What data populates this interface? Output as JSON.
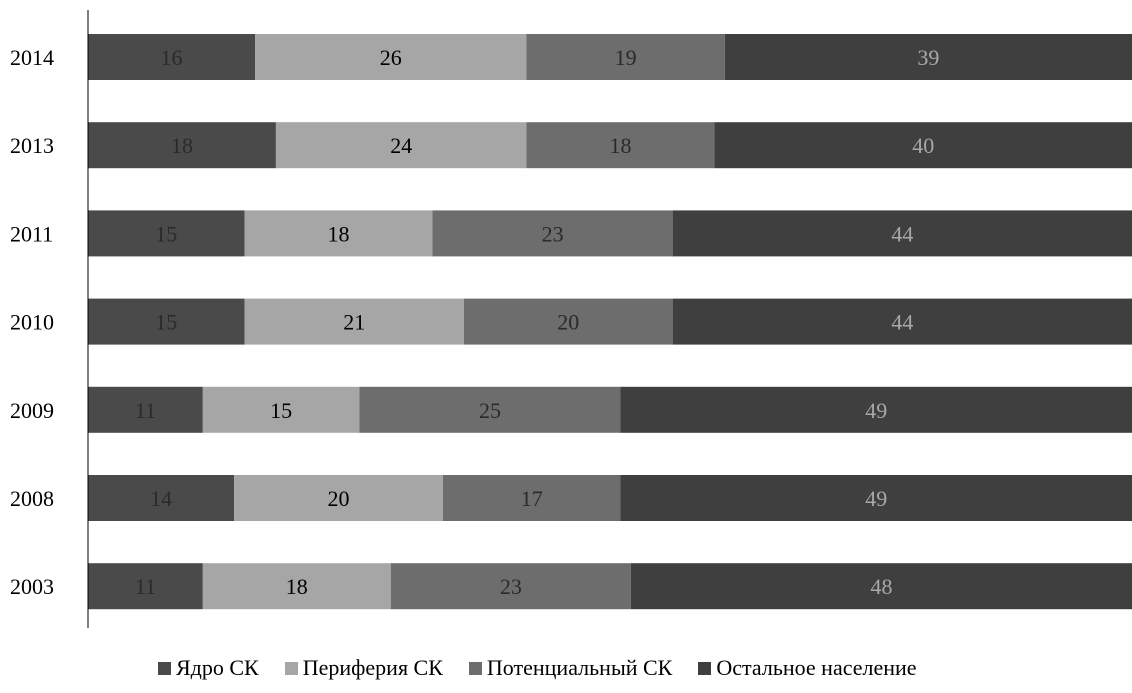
{
  "chart_data": {
    "type": "bar",
    "orientation": "horizontal",
    "stacked": true,
    "categories": [
      "2014",
      "2013",
      "2011",
      "2010",
      "2009",
      "2008",
      "2003"
    ],
    "series": [
      {
        "name": "Ядро СК",
        "color": "#4a4a4a",
        "label_color": "#2a2a2a",
        "values": [
          16,
          18,
          15,
          15,
          11,
          14,
          11
        ]
      },
      {
        "name": "Периферия СК",
        "color": "#a6a6a6",
        "label_color": "#000000",
        "values": [
          26,
          24,
          18,
          21,
          15,
          20,
          18
        ]
      },
      {
        "name": "Потенциальный СК",
        "color": "#6d6d6d",
        "label_color": "#2a2a2a",
        "values": [
          19,
          18,
          23,
          20,
          25,
          17,
          23
        ]
      },
      {
        "name": "Остальное население",
        "color": "#3f3f3f",
        "label_color": "#a8a8a8",
        "values": [
          39,
          40,
          44,
          44,
          49,
          49,
          48
        ]
      }
    ],
    "xlim": [
      0,
      100
    ],
    "grid": false,
    "legend_position": "bottom"
  }
}
